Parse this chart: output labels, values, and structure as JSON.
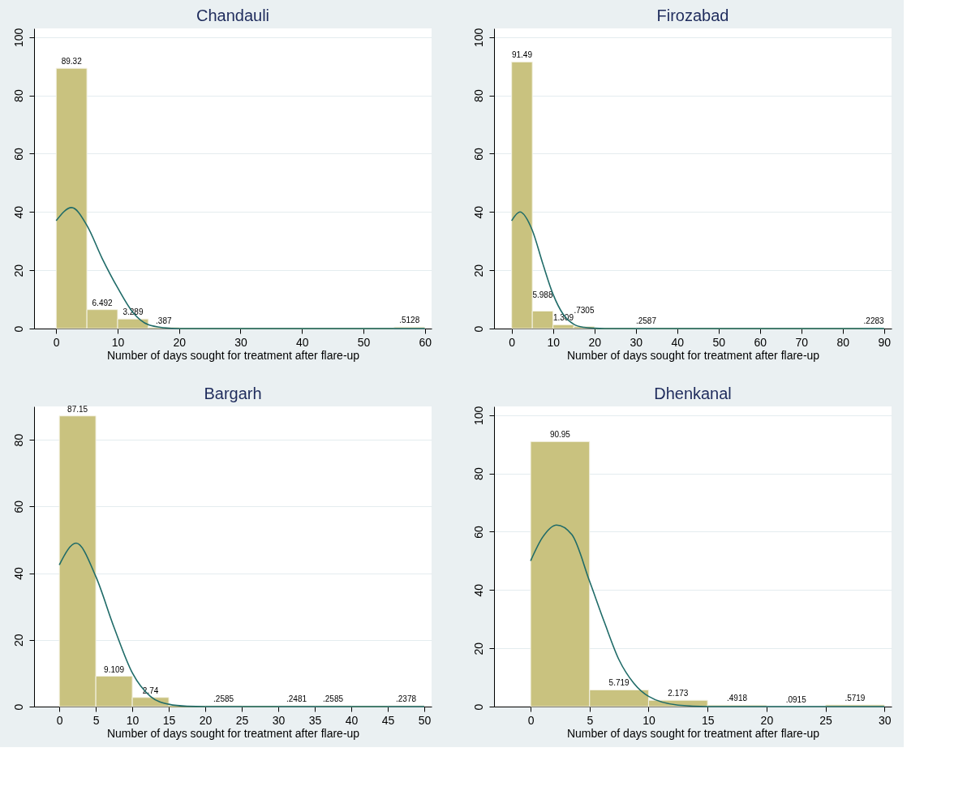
{
  "chart_data": [
    {
      "type": "histogram",
      "title": "Chandauli",
      "xlabel": "Number of days sought for treatment after flare-up",
      "bins": [
        0,
        5,
        10,
        15,
        20,
        25,
        30,
        35,
        40,
        45,
        50,
        55,
        60
      ],
      "xlim": [
        -3.6,
        61.1
      ],
      "xticks": [
        0,
        10,
        20,
        30,
        40,
        50,
        60
      ],
      "ylim": [
        0,
        103
      ],
      "yticks": [
        0,
        20,
        40,
        60,
        80,
        100
      ],
      "grid": "y",
      "series": [
        {
          "type": "histogram",
          "color": "#c9c27f",
          "values": [
            89.32,
            6.492,
            3.289,
            0.387,
            0,
            0,
            0,
            0,
            0,
            0,
            0,
            0.5128
          ],
          "value_labels": [
            "89.32",
            "6.492",
            "3.289",
            ".387",
            null,
            null,
            null,
            null,
            null,
            null,
            null,
            ".5128"
          ]
        },
        {
          "type": "line",
          "color": "#1f6b68",
          "x": [
            0,
            2.5,
            5,
            7.5,
            10,
            12.5,
            15,
            17.5,
            20,
            22.5,
            25,
            60
          ],
          "values": [
            37,
            41.5,
            35.4,
            24,
            14,
            5.5,
            1.3,
            0.3,
            0,
            0,
            0,
            0
          ]
        }
      ]
    },
    {
      "type": "histogram",
      "title": "Firozabad",
      "xlabel": "Number of days sought for treatment after flare-up",
      "bins": [
        0,
        5,
        10,
        15,
        20,
        25,
        30,
        35,
        40,
        45,
        50,
        55,
        60,
        65,
        70,
        75,
        80,
        85,
        90
      ],
      "xlim": [
        -4.25,
        91.8
      ],
      "xticks": [
        0,
        10,
        20,
        30,
        40,
        50,
        60,
        70,
        80,
        90
      ],
      "ylim": [
        0,
        103
      ],
      "yticks": [
        0,
        20,
        40,
        60,
        80,
        100
      ],
      "grid": "y",
      "series": [
        {
          "type": "histogram",
          "color": "#c9c27f",
          "values": [
            91.49,
            5.988,
            1.309,
            0.7305,
            0,
            0,
            0.2587,
            0,
            0,
            0,
            0,
            0,
            0,
            0,
            0,
            0,
            0,
            0.2283
          ],
          "value_labels": [
            "91.49",
            "5.988",
            "1.309",
            ".7305",
            null,
            null,
            ".2587",
            null,
            null,
            null,
            null,
            null,
            null,
            null,
            null,
            null,
            null,
            ".2283"
          ]
        },
        {
          "type": "line",
          "color": "#1f6b68",
          "x": [
            0,
            2,
            5,
            7.5,
            10,
            12.5,
            15,
            17.5,
            20,
            22.5,
            90
          ],
          "values": [
            37,
            40,
            33.7,
            22.4,
            11.8,
            4.8,
            1.5,
            0.4,
            0.1,
            0,
            0
          ]
        }
      ]
    },
    {
      "type": "histogram",
      "title": "Bargarh",
      "xlabel": "Number of days sought for treatment after flare-up",
      "bins": [
        0,
        5,
        10,
        15,
        20,
        25,
        30,
        35,
        40,
        45,
        50
      ],
      "xlim": [
        -3.46,
        51.0
      ],
      "xticks": [
        0,
        5,
        10,
        15,
        20,
        25,
        30,
        35,
        40,
        45,
        50
      ],
      "ylim": [
        0,
        90
      ],
      "yticks": [
        0,
        20,
        40,
        60,
        80
      ],
      "grid": "y",
      "series": [
        {
          "type": "histogram",
          "color": "#c9c27f",
          "values": [
            87.15,
            9.109,
            2.74,
            0,
            0.2585,
            0,
            0.2481,
            0.2585,
            0,
            0.2378
          ],
          "value_labels": [
            "87.15",
            "9.109",
            "2.74",
            null,
            ".2585",
            null,
            ".2481",
            ".2585",
            null,
            ".2378"
          ]
        },
        {
          "type": "line",
          "color": "#1f6b68",
          "x": [
            0,
            2.3,
            5,
            7.5,
            10,
            12.5,
            15,
            17.5,
            20,
            50
          ],
          "values": [
            42.5,
            49,
            39,
            23.7,
            10.1,
            3,
            0.7,
            0.1,
            0,
            0
          ]
        }
      ]
    },
    {
      "type": "histogram",
      "title": "Dhenkanal",
      "xlabel": "Number of days sought for treatment after flare-up",
      "bins": [
        0,
        5,
        10,
        15,
        20,
        25,
        30
      ],
      "xlim": [
        -3.1,
        30.6
      ],
      "xticks": [
        0,
        5,
        10,
        15,
        20,
        25,
        30
      ],
      "ylim": [
        0,
        103
      ],
      "yticks": [
        0,
        20,
        40,
        60,
        80,
        100
      ],
      "grid": "y",
      "series": [
        {
          "type": "histogram",
          "color": "#c9c27f",
          "values": [
            90.95,
            5.719,
            2.173,
            0.4918,
            0.0915,
            0.5719
          ],
          "value_labels": [
            "90.95",
            "5.719",
            "2.173",
            ".4918",
            ".0915",
            ".5719"
          ]
        },
        {
          "type": "line",
          "color": "#1f6b68",
          "x": [
            0,
            1,
            2.2,
            3.5,
            5,
            6.25,
            7.5,
            8.75,
            10,
            12.5,
            15,
            17.5,
            30
          ],
          "values": [
            50,
            58,
            62.3,
            59,
            43,
            29,
            16,
            8,
            3.5,
            0.5,
            0,
            0,
            0
          ]
        }
      ]
    }
  ]
}
